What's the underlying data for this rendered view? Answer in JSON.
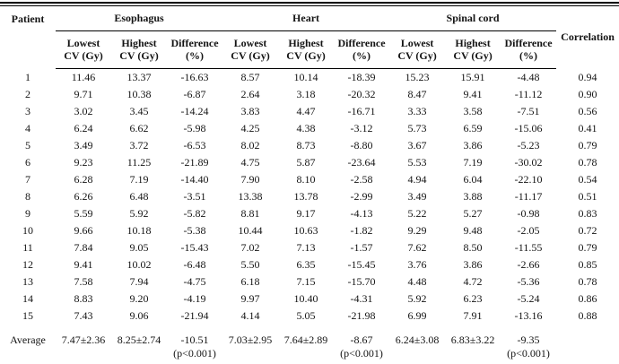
{
  "table": {
    "corner_headers": [
      "Patient",
      "Correlation"
    ],
    "groups": [
      "Esophagus",
      "Heart",
      "Spinal cord"
    ],
    "sub_headers": [
      {
        "line1": "Lowest",
        "line2": "CV (Gy)"
      },
      {
        "line1": "Highest",
        "line2": "CV (Gy)"
      },
      {
        "line1": "Difference",
        "line2": "(%)"
      },
      {
        "line1": "Lowest",
        "line2": "CV (Gy)"
      },
      {
        "line1": "Highest",
        "line2": "CV (Gy)"
      },
      {
        "line1": "Difference",
        "line2": "(%)"
      },
      {
        "line1": "Lowest",
        "line2": "CV (Gy)"
      },
      {
        "line1": "Highest",
        "line2": "CV (Gy)"
      },
      {
        "line1": "Difference",
        "line2": "(%)"
      }
    ],
    "rows": [
      {
        "patient": "1",
        "values": [
          "11.46",
          "13.37",
          "-16.63",
          "8.57",
          "10.14",
          "-18.39",
          "15.23",
          "15.91",
          "-4.48",
          "0.94"
        ]
      },
      {
        "patient": "2",
        "values": [
          "9.71",
          "10.38",
          "-6.87",
          "2.64",
          "3.18",
          "-20.32",
          "8.47",
          "9.41",
          "-11.12",
          "0.90"
        ]
      },
      {
        "patient": "3",
        "values": [
          "3.02",
          "3.45",
          "-14.24",
          "3.83",
          "4.47",
          "-16.71",
          "3.33",
          "3.58",
          "-7.51",
          "0.56"
        ]
      },
      {
        "patient": "4",
        "values": [
          "6.24",
          "6.62",
          "-5.98",
          "4.25",
          "4.38",
          "-3.12",
          "5.73",
          "6.59",
          "-15.06",
          "0.41"
        ]
      },
      {
        "patient": "5",
        "values": [
          "3.49",
          "3.72",
          "-6.53",
          "8.02",
          "8.73",
          "-8.80",
          "3.67",
          "3.86",
          "-5.23",
          "0.79"
        ]
      },
      {
        "patient": "6",
        "values": [
          "9.23",
          "11.25",
          "-21.89",
          "4.75",
          "5.87",
          "-23.64",
          "5.53",
          "7.19",
          "-30.02",
          "0.78"
        ]
      },
      {
        "patient": "7",
        "values": [
          "6.28",
          "7.19",
          "-14.40",
          "7.90",
          "8.10",
          "-2.58",
          "4.94",
          "6.04",
          "-22.10",
          "0.54"
        ]
      },
      {
        "patient": "8",
        "values": [
          "6.26",
          "6.48",
          "-3.51",
          "13.38",
          "13.78",
          "-2.99",
          "3.49",
          "3.88",
          "-11.17",
          "0.51"
        ]
      },
      {
        "patient": "9",
        "values": [
          "5.59",
          "5.92",
          "-5.82",
          "8.81",
          "9.17",
          "-4.13",
          "5.22",
          "5.27",
          "-0.98",
          "0.83"
        ]
      },
      {
        "patient": "10",
        "values": [
          "9.66",
          "10.18",
          "-5.38",
          "10.44",
          "10.63",
          "-1.82",
          "9.29",
          "9.48",
          "-2.05",
          "0.72"
        ]
      },
      {
        "patient": "11",
        "values": [
          "7.84",
          "9.05",
          "-15.43",
          "7.02",
          "7.13",
          "-1.57",
          "7.62",
          "8.50",
          "-11.55",
          "0.79"
        ]
      },
      {
        "patient": "12",
        "values": [
          "9.41",
          "10.02",
          "-6.48",
          "5.50",
          "6.35",
          "-15.45",
          "3.76",
          "3.86",
          "-2.66",
          "0.85"
        ]
      },
      {
        "patient": "13",
        "values": [
          "7.58",
          "7.94",
          "-4.75",
          "6.18",
          "7.15",
          "-15.70",
          "4.48",
          "4.72",
          "-5.36",
          "0.78"
        ]
      },
      {
        "patient": "14",
        "values": [
          "8.83",
          "9.20",
          "-4.19",
          "9.97",
          "10.40",
          "-4.31",
          "5.92",
          "6.23",
          "-5.24",
          "0.86"
        ]
      },
      {
        "patient": "15",
        "values": [
          "7.43",
          "9.06",
          "-21.94",
          "4.14",
          "5.05",
          "-21.98",
          "6.99",
          "7.91",
          "-13.16",
          "0.88"
        ]
      }
    ],
    "average": {
      "label": "Average",
      "values": [
        "7.47±2.36",
        "8.25±2.74",
        "-10.51",
        "7.03±2.95",
        "7.64±2.89",
        "-8.67",
        "6.24±3.08",
        "6.83±3.22",
        "-9.35",
        ""
      ],
      "notes": {
        "2": "(p<0.001)",
        "5": "(p<0.001)",
        "8": "(p<0.001)"
      }
    }
  }
}
